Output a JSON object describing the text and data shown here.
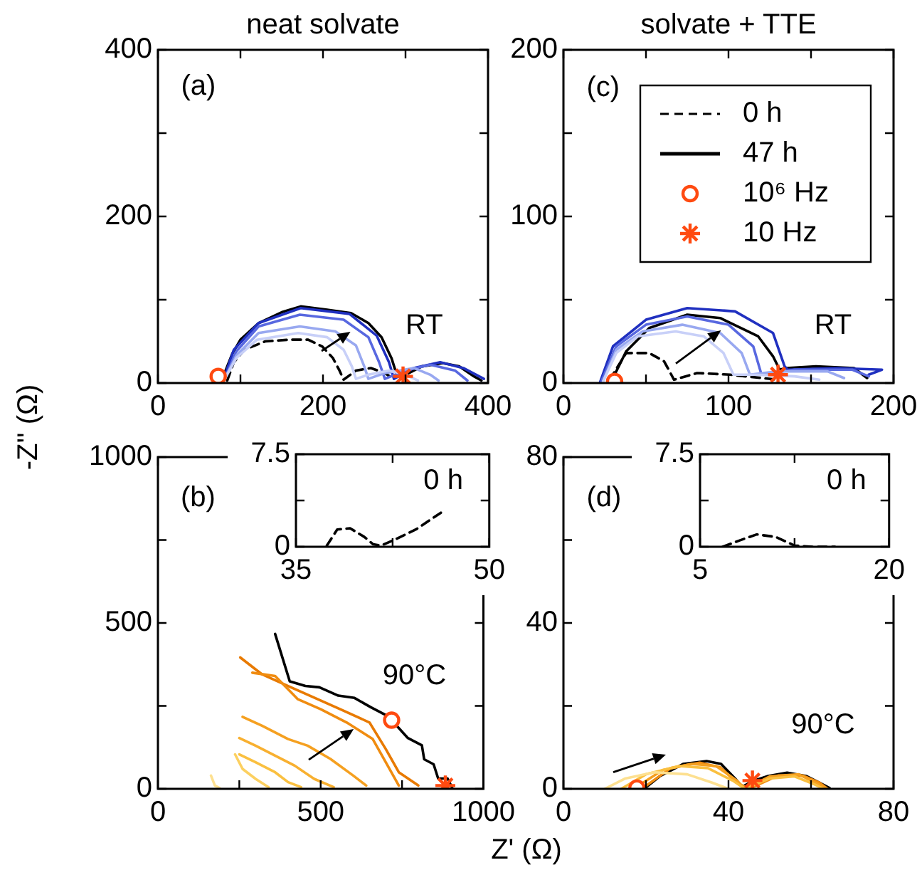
{
  "chart_data": [
    {
      "type": "line",
      "title": "neat solvate",
      "ylabel": "-Z'' (Ω)",
      "annotations": [
        "(a)",
        "RT"
      ],
      "xlim": [
        0,
        400
      ],
      "ylim": [
        0,
        400
      ],
      "xticks": [
        0,
        {
          "value": 100,
          "label": null
        },
        200,
        {
          "value": 300,
          "label": null
        },
        400
      ],
      "yticks": [
        0,
        {
          "value": 100,
          "label": null
        },
        200,
        {
          "value": 300,
          "label": null
        },
        400
      ],
      "series": [
        {
          "type": "line",
          "color": "#c8d0f8",
          "line_style": "solid",
          "x": [
            80,
            95,
            120,
            170,
            205,
            225,
            235,
            240,
            255,
            280,
            300,
            315
          ],
          "values": [
            3,
            30,
            52,
            60,
            55,
            40,
            20,
            5,
            10,
            15,
            10,
            3
          ]
        },
        {
          "type": "line",
          "color": "#98a8f0",
          "line_style": "solid",
          "x": [
            80,
            95,
            122,
            172,
            215,
            240,
            250,
            255,
            275,
            310,
            330,
            340
          ],
          "values": [
            3,
            33,
            60,
            68,
            62,
            45,
            20,
            5,
            12,
            18,
            10,
            3
          ]
        },
        {
          "type": "line",
          "color": "#5868e0",
          "line_style": "solid",
          "x": [
            80,
            95,
            122,
            172,
            225,
            255,
            268,
            275,
            300,
            330,
            360,
            375
          ],
          "values": [
            3,
            38,
            68,
            82,
            76,
            55,
            25,
            5,
            15,
            22,
            15,
            3
          ]
        },
        {
          "type": "line",
          "color": "#2030c0",
          "line_style": "solid",
          "x": [
            79,
            92,
            122,
            173,
            232,
            265,
            280,
            286,
            310,
            342,
            370,
            395
          ],
          "values": [
            3,
            40,
            72,
            90,
            83,
            57,
            25,
            5,
            18,
            25,
            18,
            5
          ]
        },
        {
          "type": "line",
          "color": "#000000",
          "line_style": "dashed",
          "x": [
            84,
            92,
            105,
            130,
            159,
            182,
            199,
            212,
            220,
            225,
            240,
            258,
            275,
            285
          ],
          "values": [
            3,
            25,
            40,
            50,
            52,
            52,
            44,
            30,
            15,
            4,
            15,
            18,
            12,
            5
          ]
        },
        {
          "type": "line",
          "color": "#000000",
          "line_style": "solid",
          "x": [
            78,
            90,
            100,
            122,
            150,
            173,
            205,
            234,
            255,
            271,
            283,
            290,
            300,
            320,
            345,
            365,
            383,
            392
          ],
          "values": [
            5,
            35,
            52,
            72,
            85,
            92,
            88,
            84,
            72,
            55,
            30,
            8,
            10,
            20,
            24,
            20,
            8,
            3
          ]
        },
        {
          "type": "scatter",
          "color": "#ff4a10",
          "marker": "circle",
          "x": [
            73
          ],
          "values": [
            8
          ]
        },
        {
          "type": "scatter",
          "color": "#ff4a10",
          "marker": "cross",
          "x": [
            297
          ],
          "values": [
            8
          ]
        }
      ]
    },
    {
      "type": "line",
      "title": "solvate + TTE",
      "annotations": [
        "(c)",
        "RT"
      ],
      "legend": "top right",
      "xlim": [
        0,
        200
      ],
      "ylim": [
        0,
        200
      ],
      "xticks": [
        0,
        {
          "value": 50,
          "label": null
        },
        100,
        {
          "value": 150,
          "label": null
        },
        200
      ],
      "yticks": [
        0,
        {
          "value": 50,
          "label": null
        },
        100,
        {
          "value": 150,
          "label": null
        },
        200
      ],
      "series": [
        {
          "type": "line",
          "color": "#c8d0f8",
          "line_style": "solid",
          "x": [
            24,
            32,
            45,
            68,
            85,
            97,
            103,
            115,
            140,
            155
          ],
          "values": [
            1,
            18,
            28,
            31,
            28,
            18,
            5,
            5,
            4,
            2
          ]
        },
        {
          "type": "line",
          "color": "#98a8f0",
          "line_style": "solid",
          "x": [
            24,
            32,
            48,
            72,
            95,
            108,
            113,
            130,
            160,
            170
          ],
          "values": [
            1,
            20,
            31,
            35,
            30,
            18,
            5,
            7,
            7,
            3
          ]
        },
        {
          "type": "line",
          "color": "#5868e0",
          "line_style": "solid",
          "x": [
            23,
            32,
            50,
            75,
            100,
            115,
            120,
            140,
            175,
            185
          ],
          "values": [
            1,
            22,
            35,
            40,
            35,
            22,
            5,
            8,
            8,
            4
          ]
        },
        {
          "type": "line",
          "color": "#2030c0",
          "line_style": "solid",
          "x": [
            22,
            30,
            50,
            75,
            104,
            127,
            134,
            136,
            165,
            193,
            185
          ],
          "values": [
            0,
            22,
            38,
            45,
            43,
            30,
            10,
            8,
            9,
            8,
            5
          ]
        },
        {
          "name": "0 h",
          "type": "line",
          "color": "#000000",
          "line_style": "dashed",
          "x": [
            28,
            38,
            52,
            61,
            67,
            81,
            101,
            130
          ],
          "values": [
            2,
            18,
            18,
            13,
            2,
            6,
            5,
            2
          ]
        },
        {
          "name": "47 h",
          "type": "line",
          "color": "#000000",
          "line_style": "solid",
          "x": [
            29.5,
            38,
            52,
            75,
            95,
            118,
            127,
            131,
            135,
            153,
            176,
            184
          ],
          "values": [
            2,
            19,
            33,
            41,
            39,
            28,
            16,
            8,
            9,
            10,
            9,
            3
          ]
        },
        {
          "name": "10⁶ Hz",
          "type": "scatter",
          "color": "#ff4a10",
          "marker": "circle",
          "x": [
            31
          ],
          "values": [
            1
          ]
        },
        {
          "name": "10 Hz",
          "type": "scatter",
          "color": "#ff4a10",
          "marker": "cross",
          "x": [
            130
          ],
          "values": [
            5
          ]
        }
      ]
    },
    {
      "type": "line",
      "xlabel": "Z' (Ω)",
      "annotations": [
        "(b)",
        "90°C"
      ],
      "xlim": [
        0,
        1000
      ],
      "ylim": [
        0,
        1000
      ],
      "xticks": [
        0,
        {
          "value": 250,
          "label": null
        },
        500,
        {
          "value": 750,
          "label": null
        },
        1000
      ],
      "yticks": [
        0,
        {
          "value": 250,
          "label": null
        },
        500,
        {
          "value": 750,
          "label": null
        },
        1000
      ],
      "series": [
        {
          "type": "line",
          "color": "#fde090",
          "line_style": "solid",
          "x": [
            163,
            175,
            190
          ],
          "values": [
            40,
            10,
            2
          ]
        },
        {
          "type": "line",
          "color": "#fcd060",
          "line_style": "solid",
          "x": [
            237,
            260,
            300,
            340
          ],
          "values": [
            104,
            60,
            30,
            5
          ]
        },
        {
          "type": "line",
          "color": "#fac040",
          "line_style": "solid",
          "x": [
            250,
            300,
            360,
            400,
            440
          ],
          "values": [
            104,
            80,
            50,
            20,
            5
          ]
        },
        {
          "type": "line",
          "color": "#f8b030",
          "line_style": "solid",
          "x": [
            250,
            300,
            360,
            420,
            480,
            540
          ],
          "values": [
            153,
            130,
            100,
            70,
            30,
            5
          ]
        },
        {
          "type": "line",
          "color": "#f5a020",
          "line_style": "solid",
          "x": [
            260,
            320,
            400,
            460,
            530,
            600,
            640
          ],
          "values": [
            217,
            190,
            150,
            130,
            90,
            40,
            10
          ]
        },
        {
          "type": "line",
          "color": "#f08c10",
          "line_style": "solid",
          "x": [
            290,
            360,
            430,
            500,
            580,
            660,
            700,
            740
          ],
          "values": [
            350,
            340,
            270,
            240,
            200,
            150,
            80,
            10
          ]
        },
        {
          "type": "line",
          "color": "#e87a00",
          "line_style": "solid",
          "x": [
            253,
            320,
            400,
            480,
            560,
            650,
            700,
            740,
            800
          ],
          "values": [
            396,
            345,
            310,
            275,
            240,
            200,
            120,
            50,
            10
          ]
        },
        {
          "type": "line",
          "color": "#000000",
          "line_style": "solid",
          "x": [
            360,
            405,
            453,
            496,
            554,
            604,
            654,
            697,
            718,
            768,
            811,
            818,
            847,
            861,
            890,
            904
          ],
          "values": [
            467,
            324,
            310,
            306,
            281,
            274,
            246,
            224,
            207,
            153,
            131,
            89,
            74,
            31,
            31,
            3
          ]
        },
        {
          "type": "scatter",
          "color": "#ff4a10",
          "marker": "circle",
          "x": [
            718
          ],
          "values": [
            207
          ]
        },
        {
          "type": "scatter",
          "color": "#ff4a10",
          "marker": "cross",
          "x": [
            883
          ],
          "values": [
            10
          ]
        }
      ]
    },
    {
      "type": "line",
      "annotations": [
        "0 h"
      ],
      "xlim": [
        35,
        50
      ],
      "ylim": [
        0,
        7.5
      ],
      "xticks": [
        35,
        {
          "value": 42.5,
          "label": null
        },
        50
      ],
      "yticks": [
        0,
        {
          "value": 3.75,
          "label": null
        },
        7.5
      ],
      "series": [
        {
          "type": "line",
          "color": "#000000",
          "line_style": "dashed",
          "x": [
            37.4,
            38.2,
            39.2,
            40.3,
            41,
            41.6,
            42.5,
            44.3,
            46.3
          ],
          "values": [
            0.1,
            1.4,
            1.5,
            0.8,
            0.2,
            0.1,
            0.5,
            1.4,
            2.8
          ]
        }
      ]
    },
    {
      "type": "line",
      "annotations": [
        "(d)",
        "90°C"
      ],
      "xlim": [
        0,
        80
      ],
      "ylim": [
        0,
        80
      ],
      "xticks": [
        0,
        {
          "value": 20,
          "label": null
        },
        40,
        {
          "value": 60,
          "label": null
        },
        80
      ],
      "yticks": [
        0,
        {
          "value": 20,
          "label": null
        },
        40,
        {
          "value": 60,
          "label": null
        },
        80
      ],
      "series": [
        {
          "type": "line",
          "color": "#fde090",
          "line_style": "solid",
          "x": [
            10,
            15,
            22,
            30,
            36,
            40
          ],
          "values": [
            0,
            2.5,
            4,
            3.5,
            1.5,
            0
          ]
        },
        {
          "type": "line",
          "color": "#fac040",
          "line_style": "solid",
          "x": [
            14,
            20,
            28,
            35,
            41,
            44,
            50,
            56,
            61,
            63
          ],
          "values": [
            0,
            3.5,
            5.5,
            5,
            2,
            0,
            2.5,
            3,
            1,
            0
          ]
        },
        {
          "type": "line",
          "color": "#f5a020",
          "line_style": "solid",
          "x": [
            17,
            24,
            31,
            37,
            42,
            44,
            50,
            57,
            62,
            64
          ],
          "values": [
            0,
            4.5,
            6,
            5.5,
            2,
            0,
            3,
            3.5,
            1,
            0
          ]
        },
        {
          "type": "line",
          "color": "#f08c10",
          "line_style": "solid",
          "x": [
            19,
            26,
            33,
            38,
            42,
            45,
            52,
            58,
            62,
            64
          ],
          "values": [
            0,
            5,
            6.3,
            5.2,
            1.5,
            0,
            3.2,
            3.2,
            1.5,
            0
          ]
        },
        {
          "type": "line",
          "color": "#000000",
          "line_style": "solid",
          "x": [
            19.8,
            23.3,
            29,
            34.7,
            38.2,
            41.6,
            43.3,
            46.2,
            49.6,
            54.2,
            58.8,
            62.2,
            64.5
          ],
          "values": [
            0.2,
            3,
            6,
            6.7,
            6,
            2.5,
            0.5,
            2,
            3.1,
            3.9,
            3.1,
            1.4,
            0.2
          ]
        },
        {
          "type": "scatter",
          "color": "#ff4a10",
          "marker": "circle",
          "x": [
            17.8
          ],
          "values": [
            0.2
          ]
        },
        {
          "type": "scatter",
          "color": "#ff4a10",
          "marker": "cross",
          "x": [
            45.8
          ],
          "values": [
            2
          ]
        }
      ]
    },
    {
      "type": "line",
      "annotations": [
        "0 h"
      ],
      "xlim": [
        5,
        20
      ],
      "ylim": [
        0,
        7.5
      ],
      "xticks": [
        5,
        {
          "value": 12.5,
          "label": null
        },
        20
      ],
      "yticks": [
        0,
        {
          "value": 3.75,
          "label": null
        },
        7.5
      ],
      "series": [
        {
          "type": "line",
          "color": "#000000",
          "line_style": "dashed",
          "x": [
            6.8,
            8.1,
            9.5,
            11,
            12.5,
            13.9,
            15.7
          ],
          "values": [
            0,
            0.5,
            1,
            0.8,
            0.1,
            0,
            0
          ]
        }
      ]
    }
  ]
}
